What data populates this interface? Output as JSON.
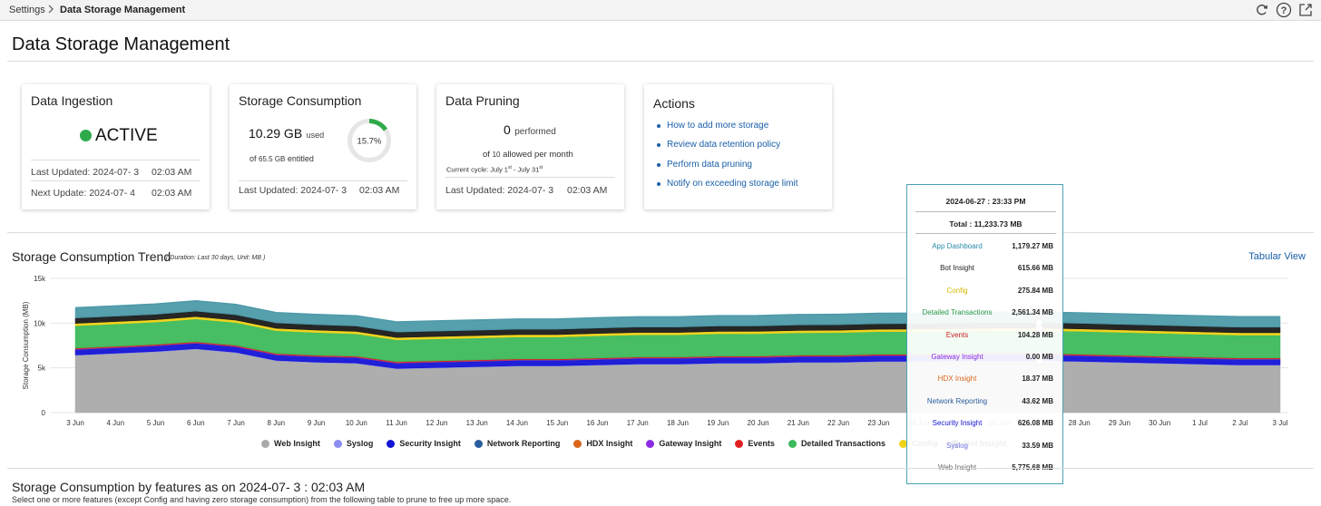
{
  "breadcrumb": {
    "root": "Settings",
    "current": "Data Storage Management"
  },
  "page_title": "Data Storage Management",
  "cards": {
    "ingestion": {
      "title": "Data Ingestion",
      "status": "ACTIVE",
      "status_color": "#2faa4a",
      "last_updated_label": "Last Updated: 2024-07- 3",
      "last_updated_time": "02:03 AM",
      "next_update_label": "Next Update: 2024-07- 4",
      "next_update_time": "02:03 AM"
    },
    "storage": {
      "title": "Storage Consumption",
      "used_value": "10.29 GB",
      "used_suffix": "used",
      "entitled_prefix": "of",
      "entitled_value": "65.5 GB",
      "entitled_suffix": "entitled",
      "percent": "15.7%",
      "percent_fraction": 0.157,
      "last_updated_label": "Last Updated: 2024-07- 3",
      "last_updated_time": "02:03 AM"
    },
    "pruning": {
      "title": "Data Pruning",
      "performed_value": "0",
      "performed_label": "performed",
      "allowed_prefix": "of",
      "allowed_value": "10",
      "allowed_suffix": "allowed per month",
      "cycle_label": "Current cycle:",
      "cycle_start": "July 1",
      "cycle_start_sup": "st",
      "cycle_sep": "-",
      "cycle_end": "July 31",
      "cycle_end_sup": "st",
      "last_updated_label": "Last Updated: 2024-07- 3",
      "last_updated_time": "02:03 AM"
    },
    "actions": {
      "title": "Actions",
      "links": [
        "How to add more storage",
        "Review data retention policy",
        "Perform data pruning",
        "Notify on exceeding storage limit"
      ]
    }
  },
  "trend": {
    "title": "Storage Consumption Trend",
    "subtitle": "( Duration: Last 30 days, Unit: MB )",
    "tabular_view": "Tabular View"
  },
  "chart_data": {
    "type": "area",
    "stacked": true,
    "ylabel": "Storage Consumption (MB)",
    "ylim": [
      0,
      15000
    ],
    "yticks": [
      "0",
      "5k",
      "10k",
      "15k"
    ],
    "categories": [
      "3 Jun",
      "4 Jun",
      "5 Jun",
      "6 Jun",
      "7 Jun",
      "8 Jun",
      "9 Jun",
      "10 Jun",
      "11 Jun",
      "12 Jun",
      "13 Jun",
      "14 Jun",
      "15 Jun",
      "16 Jun",
      "17 Jun",
      "18 Jun",
      "19 Jun",
      "20 Jun",
      "21 Jun",
      "22 Jun",
      "23 Jun",
      "24 Jun",
      "25 Jun",
      "26 Jun",
      "27 Jun",
      "28 Jun",
      "29 Jun",
      "30 Jun",
      "1 Jul",
      "2 Jul",
      "3 Jul"
    ],
    "grid": true,
    "legend_position": "bottom",
    "series": [
      {
        "name": "Web Insight",
        "color": "#aaaaaa",
        "values": [
          6400,
          6600,
          6800,
          7100,
          6700,
          5800,
          5600,
          5500,
          4900,
          5000,
          5100,
          5200,
          5200,
          5300,
          5400,
          5400,
          5500,
          5500,
          5600,
          5600,
          5700,
          5700,
          5750,
          5780,
          5775.68,
          5700,
          5600,
          5500,
          5400,
          5300,
          5300
        ]
      },
      {
        "name": "Syslog",
        "color": "#8a8ef0",
        "values": [
          40,
          40,
          40,
          40,
          40,
          40,
          40,
          40,
          35,
          35,
          35,
          35,
          35,
          35,
          35,
          35,
          35,
          35,
          35,
          35,
          35,
          34,
          34,
          34,
          33.59,
          34,
          34,
          34,
          34,
          34,
          34
        ]
      },
      {
        "name": "Security Insight",
        "color": "#1414d6",
        "values": [
          600,
          600,
          610,
          610,
          610,
          600,
          600,
          600,
          580,
          590,
          590,
          600,
          600,
          600,
          610,
          610,
          610,
          615,
          615,
          620,
          620,
          620,
          625,
          626,
          626.08,
          620,
          610,
          600,
          600,
          600,
          600
        ]
      },
      {
        "name": "Network Reporting",
        "color": "#2a5d9c",
        "values": [
          40,
          40,
          40,
          40,
          40,
          40,
          40,
          40,
          40,
          40,
          40,
          40,
          40,
          40,
          40,
          40,
          40,
          40,
          40,
          40,
          40,
          42,
          43,
          43,
          43.62,
          43,
          43,
          43,
          43,
          43,
          43
        ]
      },
      {
        "name": "HDX Insight",
        "color": "#d9661a",
        "values": [
          18,
          18,
          18,
          18,
          18,
          18,
          18,
          18,
          18,
          18,
          18,
          18,
          18,
          18,
          18,
          18,
          18,
          18,
          18,
          18,
          18,
          18,
          18,
          18,
          18.37,
          18,
          18,
          18,
          18,
          18,
          18
        ]
      },
      {
        "name": "Gateway Insight",
        "color": "#8a2be2",
        "values": [
          0,
          0,
          0,
          0,
          0,
          0,
          0,
          0,
          0,
          0,
          0,
          0,
          0,
          0,
          0,
          0,
          0,
          0,
          0,
          0,
          0,
          0,
          0,
          0,
          0,
          0,
          0,
          0,
          0,
          0,
          0
        ]
      },
      {
        "name": "Events",
        "color": "#e02020",
        "values": [
          100,
          100,
          100,
          100,
          100,
          100,
          100,
          100,
          100,
          100,
          100,
          100,
          100,
          100,
          100,
          100,
          100,
          100,
          100,
          100,
          100,
          102,
          103,
          104,
          104.28,
          104,
          104,
          104,
          104,
          104,
          104
        ]
      },
      {
        "name": "Detailed Transactions",
        "color": "#3dbb5c",
        "values": [
          2500,
          2500,
          2500,
          2550,
          2550,
          2550,
          2550,
          2500,
          2450,
          2450,
          2450,
          2450,
          2450,
          2480,
          2480,
          2480,
          2500,
          2500,
          2500,
          2520,
          2530,
          2540,
          2550,
          2560,
          2561.34,
          2560,
          2560,
          2560,
          2550,
          2550,
          2550
        ]
      },
      {
        "name": "Config",
        "color": "#f0d21a",
        "values": [
          270,
          270,
          270,
          270,
          270,
          270,
          270,
          270,
          270,
          270,
          270,
          270,
          270,
          270,
          270,
          270,
          270,
          270,
          270,
          270,
          270,
          272,
          274,
          275,
          275.84,
          276,
          276,
          276,
          276,
          276,
          276
        ]
      },
      {
        "name": "Bot Insight",
        "color": "#1a1a1a",
        "values": [
          600,
          600,
          600,
          600,
          600,
          600,
          600,
          600,
          600,
          600,
          600,
          600,
          600,
          600,
          600,
          600,
          600,
          600,
          610,
          610,
          610,
          612,
          614,
          615,
          615.66,
          615,
          615,
          615,
          615,
          615,
          615
        ]
      },
      {
        "name": "App Dashboard",
        "color": "#4d9aa8",
        "values": [
          1150,
          1160,
          1170,
          1170,
          1170,
          1160,
          1160,
          1160,
          1150,
          1150,
          1150,
          1150,
          1160,
          1160,
          1160,
          1160,
          1170,
          1170,
          1170,
          1170,
          1175,
          1176,
          1178,
          1179,
          1179.27,
          1180,
          1180,
          1180,
          1180,
          1180,
          1180
        ]
      }
    ]
  },
  "tooltip": {
    "date": "2024-06-27 : 23:33 PM",
    "total": "Total : 11,233.73 MB",
    "rows": [
      {
        "name": "App Dashboard",
        "value": "1,179.27 MB",
        "color": "#2a8aa8"
      },
      {
        "name": "Bot Insight",
        "value": "615.66 MB",
        "color": "#222222"
      },
      {
        "name": "Config",
        "value": "275.84 MB",
        "color": "#d6b800"
      },
      {
        "name": "Detailed Transactions",
        "value": "2,561.34 MB",
        "color": "#2a9a48"
      },
      {
        "name": "Events",
        "value": "104.28 MB",
        "color": "#d02020"
      },
      {
        "name": "Gateway Insight",
        "value": "0.00 MB",
        "color": "#8a2be2"
      },
      {
        "name": "HDX Insight",
        "value": "18.37 MB",
        "color": "#d9661a"
      },
      {
        "name": "Network Reporting",
        "value": "43.62 MB",
        "color": "#2a5d9c"
      },
      {
        "name": "Security Insight",
        "value": "626.08 MB",
        "color": "#1414d6"
      },
      {
        "name": "Syslog",
        "value": "33.59 MB",
        "color": "#6a6ee0"
      },
      {
        "name": "Web Insight",
        "value": "5,775.68 MB",
        "color": "#666666"
      }
    ]
  },
  "bottom": {
    "title": "Storage Consumption by features as on 2024-07- 3 : 02:03 AM",
    "subtitle": "Select one or more features (except Config and having zero storage consumption) from the following table to prune to free up more space."
  }
}
